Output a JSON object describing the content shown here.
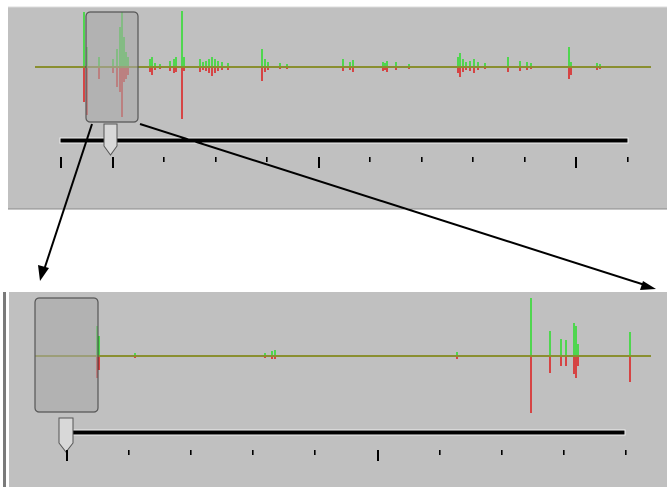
{
  "colors": {
    "panel_bg": "#c0c0c0",
    "positive_spike": "#1fe01f",
    "negative_spike": "#e01010",
    "baseline": "#8a8f30",
    "thumb_fill": "#a9a9a9",
    "thumb_border": "#555555",
    "arrow": "#000000",
    "slider_rail": "#000000"
  },
  "top_panel": {
    "name": "overview-waveform",
    "viewport_start": 0.095,
    "viewport_end": 0.18,
    "slider_value": 0.09,
    "tick_count": 12
  },
  "bottom_panel": {
    "name": "zoomed-waveform",
    "viewport_start": 0.0,
    "viewport_end": 0.1,
    "slider_value": 0.0,
    "tick_count": 10
  },
  "icons": {
    "zoom_arrow_left": "arrow-down-left-icon",
    "zoom_arrow_right": "arrow-down-right-icon",
    "slider_thumb": "slider-thumb-icon"
  }
}
